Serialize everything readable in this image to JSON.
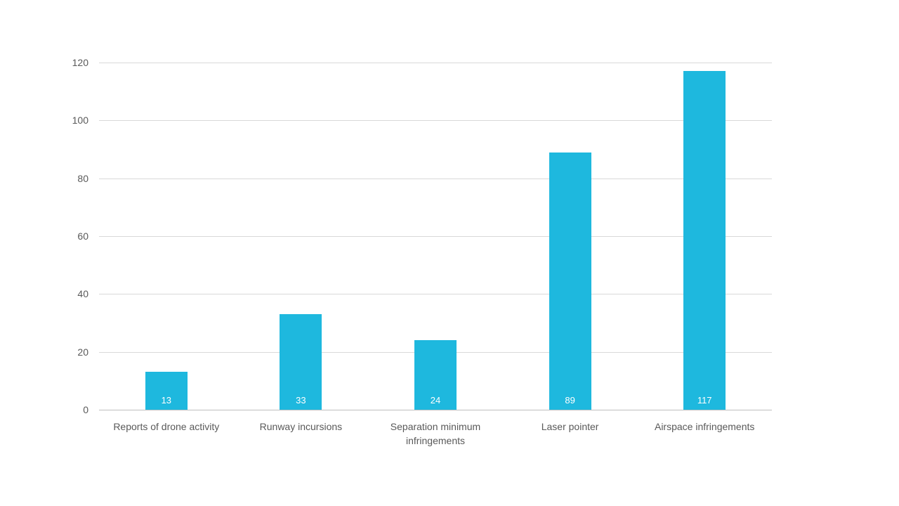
{
  "chart_data": {
    "type": "bar",
    "title": "",
    "xlabel": "",
    "ylabel": "",
    "categories": [
      "Reports of drone activity",
      "Runway incursions",
      "Separation minimum infringements",
      "Laser pointer",
      "Airspace infringements"
    ],
    "values": [
      13,
      33,
      24,
      89,
      117
    ],
    "data_labels": [
      "13",
      "33",
      "24",
      "89",
      "117"
    ],
    "ylim": [
      0,
      120
    ],
    "ytick_step": 20,
    "ytick_labels": [
      "0",
      "20",
      "40",
      "60",
      "80",
      "100",
      "120"
    ],
    "grid": true,
    "legend": false
  },
  "style": {
    "bar_color": "#1eb8de",
    "bar_label_color": "#ffffff",
    "gridline_color": "#d9d9d9",
    "axis_line_color": "#bfbfbf",
    "tick_label_color": "#595959",
    "category_label_color": "#595959",
    "background_color": "#ffffff"
  }
}
